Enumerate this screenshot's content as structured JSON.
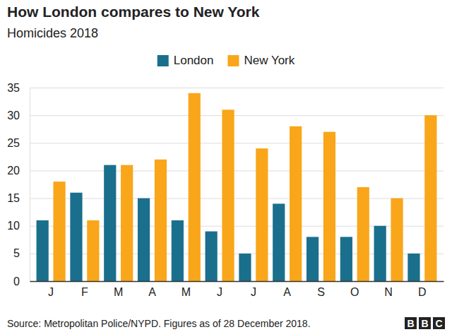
{
  "chart_data": {
    "type": "bar",
    "title": "How London compares to New York",
    "subtitle": "Homicides 2018",
    "categories": [
      "J",
      "F",
      "M",
      "A",
      "M",
      "J",
      "J",
      "A",
      "S",
      "O",
      "N",
      "D"
    ],
    "series": [
      {
        "name": "London",
        "color": "#1a6f8c",
        "values": [
          11,
          16,
          21,
          15,
          11,
          9,
          5,
          14,
          8,
          8,
          10,
          5
        ]
      },
      {
        "name": "New York",
        "color": "#f9a61a",
        "values": [
          18,
          11,
          21,
          22,
          34,
          31,
          24,
          28,
          27,
          17,
          15,
          30
        ]
      }
    ],
    "ylim": [
      0,
      35
    ],
    "yticks": [
      0,
      5,
      10,
      15,
      20,
      25,
      30,
      35
    ],
    "grid": true,
    "legend": "top",
    "annotations": [
      "Source: Metropolitan Police/NYPD. Figures as of 28 December 2018.",
      "BBC"
    ]
  }
}
